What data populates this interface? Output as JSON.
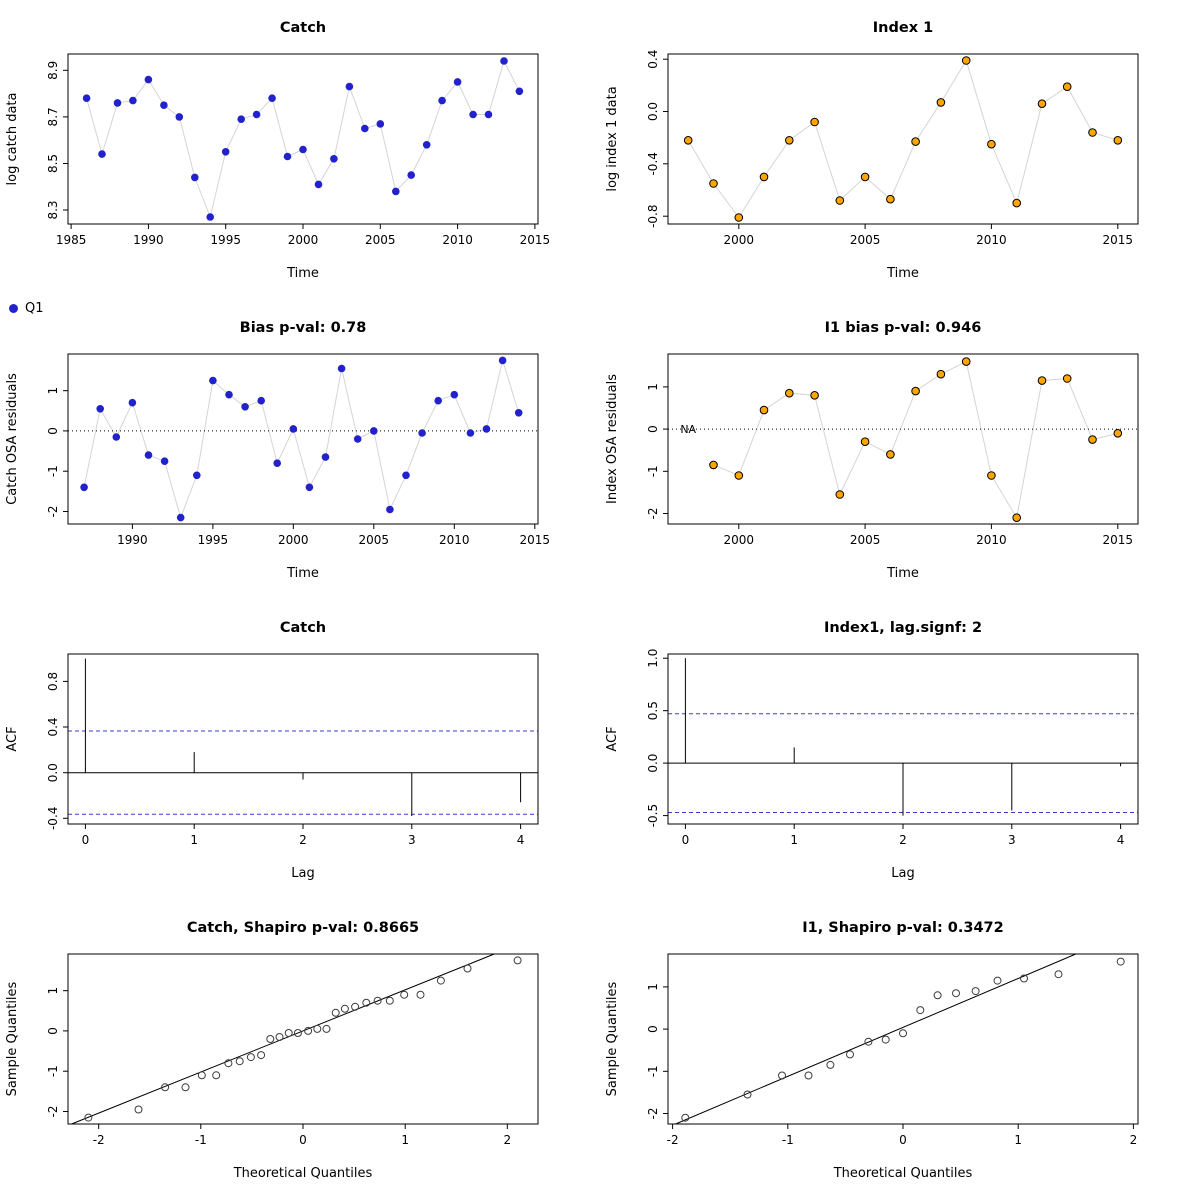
{
  "page": {
    "background": "#ffffff"
  },
  "legend": {
    "label": "Q1",
    "color": "#2222CC"
  },
  "colors": {
    "blue_point": "#2222CC",
    "orange_point": "#FFA500",
    "orange_stroke": "#000000",
    "green_title": "#228B22",
    "red_title": "#E00000",
    "connector": "#d4d4d4",
    "conf_band": "#3a3ad6"
  },
  "chart_data": [
    {
      "id": "catch-data",
      "type": "scatter",
      "title": "Catch",
      "title_color": "#000000",
      "xlabel": "Time",
      "ylabel": "log catch data",
      "xlim": [
        1984.8,
        2015.2
      ],
      "ylim": [
        8.24,
        8.97
      ],
      "xticks": {
        "values": [
          1985,
          1990,
          1995,
          2000,
          2005,
          2010,
          2015
        ],
        "labels": [
          "1985",
          "1990",
          "1995",
          "2000",
          "2005",
          "2010",
          "2015"
        ]
      },
      "yticks": {
        "values": [
          8.3,
          8.5,
          8.7,
          8.9
        ],
        "labels": [
          "8.3",
          "8.5",
          "8.7",
          "8.9"
        ]
      },
      "point": {
        "fill": "#2222CC",
        "stroke": "none",
        "open": false
      },
      "connect": true,
      "zero_line": false,
      "x": [
        1986,
        1987,
        1988,
        1989,
        1990,
        1991,
        1992,
        1993,
        1994,
        1995,
        1996,
        1997,
        1998,
        1999,
        2000,
        2001,
        2002,
        2003,
        2004,
        2005,
        2006,
        2007,
        2008,
        2009,
        2010,
        2011,
        2012,
        2013,
        2014
      ],
      "y": [
        8.78,
        8.54,
        8.76,
        8.77,
        8.86,
        8.75,
        8.7,
        8.44,
        8.27,
        8.55,
        8.69,
        8.71,
        8.78,
        8.53,
        8.56,
        8.41,
        8.52,
        8.83,
        8.65,
        8.67,
        8.38,
        8.45,
        8.58,
        8.77,
        8.85,
        8.71,
        8.71,
        8.94,
        8.81
      ]
    },
    {
      "id": "index1-data",
      "type": "scatter",
      "title": "Index 1",
      "title_color": "#000000",
      "xlabel": "Time",
      "ylabel": "log index 1 data",
      "xlim": [
        1997.2,
        2015.8
      ],
      "ylim": [
        -0.86,
        0.44
      ],
      "xticks": {
        "values": [
          2000,
          2005,
          2010,
          2015
        ],
        "labels": [
          "2000",
          "2005",
          "2010",
          "2015"
        ]
      },
      "yticks": {
        "values": [
          -0.8,
          -0.4,
          0.0,
          0.4
        ],
        "labels": [
          "-0.8",
          "-0.4",
          "0.0",
          "0.4"
        ]
      },
      "point": {
        "fill": "#FFA500",
        "stroke": "#000000",
        "open": false
      },
      "connect": true,
      "zero_line": false,
      "x": [
        1998,
        1999,
        2000,
        2001,
        2002,
        2003,
        2004,
        2005,
        2006,
        2007,
        2008,
        2009,
        2010,
        2011,
        2012,
        2013,
        2014,
        2015
      ],
      "y": [
        -0.22,
        -0.55,
        -0.81,
        -0.5,
        -0.22,
        -0.08,
        -0.68,
        -0.5,
        -0.67,
        -0.23,
        0.07,
        0.39,
        -0.25,
        -0.7,
        0.06,
        0.19,
        -0.16,
        -0.22
      ]
    },
    {
      "id": "catch-osa-residuals",
      "type": "scatter",
      "title": "Bias p-val: 0.78",
      "title_color": "#228B22",
      "xlabel": "Time",
      "ylabel": "Catch OSA residuals",
      "xlim": [
        1986.0,
        2015.2
      ],
      "ylim": [
        -2.31,
        1.91
      ],
      "xticks": {
        "values": [
          1990,
          1995,
          2000,
          2005,
          2010,
          2015
        ],
        "labels": [
          "1990",
          "1995",
          "2000",
          "2005",
          "2010",
          "2015"
        ]
      },
      "yticks": {
        "values": [
          -2,
          -1,
          0,
          1
        ],
        "labels": [
          "-2",
          "-1",
          "0",
          "1"
        ]
      },
      "point": {
        "fill": "#2222CC",
        "stroke": "none",
        "open": false
      },
      "connect": true,
      "zero_line": true,
      "x": [
        1987,
        1988,
        1989,
        1990,
        1991,
        1992,
        1993,
        1994,
        1995,
        1996,
        1997,
        1998,
        1999,
        2000,
        2001,
        2002,
        2003,
        2004,
        2005,
        2006,
        2007,
        2008,
        2009,
        2010,
        2011,
        2012,
        2013,
        2014
      ],
      "y": [
        -1.4,
        0.55,
        -0.15,
        0.7,
        -0.6,
        -0.75,
        -2.15,
        -1.1,
        1.25,
        0.9,
        0.6,
        0.75,
        -0.8,
        0.05,
        -1.4,
        -0.65,
        1.55,
        -0.2,
        0.0,
        -1.95,
        -1.1,
        -0.05,
        0.75,
        0.9,
        -0.05,
        0.05,
        1.75,
        0.45
      ]
    },
    {
      "id": "index-osa-residuals",
      "type": "scatter",
      "title": "I1 bias p-val: 0.946",
      "title_color": "#228B22",
      "xlabel": "Time",
      "ylabel": "Index OSA residuals",
      "xlim": [
        1997.2,
        2015.8
      ],
      "ylim": [
        -2.25,
        1.78
      ],
      "xticks": {
        "values": [
          2000,
          2005,
          2010,
          2015
        ],
        "labels": [
          "2000",
          "2005",
          "2010",
          "2015"
        ]
      },
      "yticks": {
        "values": [
          -2,
          -1,
          0,
          1
        ],
        "labels": [
          "-2",
          "-1",
          "0",
          "1"
        ]
      },
      "point": {
        "fill": "#FFA500",
        "stroke": "#000000",
        "open": false
      },
      "connect": true,
      "zero_line": true,
      "na_label": {
        "x": 1998.0,
        "y": 0,
        "text": "NA"
      },
      "x": [
        1999,
        2000,
        2001,
        2002,
        2003,
        2004,
        2005,
        2006,
        2007,
        2008,
        2009,
        2010,
        2011,
        2012,
        2013,
        2014,
        2015
      ],
      "y": [
        -0.85,
        -1.1,
        0.45,
        0.85,
        0.8,
        -1.55,
        -0.3,
        -0.6,
        0.9,
        1.3,
        1.6,
        -1.1,
        -2.1,
        1.15,
        1.2,
        -0.25,
        -0.1
      ]
    },
    {
      "id": "catch-acf",
      "type": "acf",
      "title": "Catch",
      "title_color": "#228B22",
      "xlabel": "Lag",
      "ylabel": "ACF",
      "xlim": [
        -0.16,
        4.16
      ],
      "ylim": [
        -0.45,
        1.04
      ],
      "xticks": {
        "values": [
          0,
          1,
          2,
          3,
          4
        ],
        "labels": [
          "0",
          "1",
          "2",
          "3",
          "4"
        ]
      },
      "yticks": {
        "values": [
          -0.4,
          0.0,
          0.4,
          0.8
        ],
        "labels": [
          "-0.4",
          "0.0",
          "0.4",
          "0.8"
        ]
      },
      "conf": 0.365,
      "lags": [
        0,
        1,
        2,
        3,
        4
      ],
      "values": [
        1.0,
        0.18,
        -0.06,
        -0.38,
        -0.26
      ]
    },
    {
      "id": "index-acf",
      "type": "acf",
      "title": "Index1, lag.signf: 2",
      "title_color": "#E00000",
      "xlabel": "Lag",
      "ylabel": "ACF",
      "xlim": [
        -0.16,
        4.16
      ],
      "ylim": [
        -0.58,
        1.04
      ],
      "xticks": {
        "values": [
          0,
          1,
          2,
          3,
          4
        ],
        "labels": [
          "0",
          "1",
          "2",
          "3",
          "4"
        ]
      },
      "yticks": {
        "values": [
          -0.5,
          0.0,
          0.5,
          1.0
        ],
        "labels": [
          "-0.5",
          "0.0",
          "0.5",
          "1.0"
        ]
      },
      "conf": 0.47,
      "lags": [
        0,
        1,
        2,
        3,
        4
      ],
      "values": [
        1.0,
        0.15,
        -0.5,
        -0.45,
        -0.03
      ]
    },
    {
      "id": "catch-qq",
      "type": "qq",
      "title": "Catch, Shapiro p-val: 0.8665",
      "title_color": "#228B22",
      "xlabel": "Theoretical Quantiles",
      "ylabel": "Sample Quantiles",
      "xlim": [
        -2.3,
        2.3
      ],
      "ylim": [
        -2.31,
        1.91
      ],
      "xticks": {
        "values": [
          -2,
          -1,
          0,
          1,
          2
        ],
        "labels": [
          "-2",
          "-1",
          "0",
          "1",
          "2"
        ]
      },
      "yticks": {
        "values": [
          -2,
          -1,
          0,
          1
        ],
        "labels": [
          "-2",
          "-1",
          "0",
          "1"
        ]
      },
      "line": {
        "slope": 1.02,
        "intercept": 0.0
      },
      "x": [
        -2.1,
        -1.61,
        -1.35,
        -1.15,
        -0.99,
        -0.85,
        -0.73,
        -0.62,
        -0.51,
        -0.41,
        -0.32,
        -0.23,
        -0.14,
        -0.05,
        0.05,
        0.14,
        0.23,
        0.32,
        0.41,
        0.51,
        0.62,
        0.73,
        0.85,
        0.99,
        1.15,
        1.35,
        1.61,
        2.1
      ],
      "y": [
        -2.15,
        -1.95,
        -1.4,
        -1.4,
        -1.1,
        -1.1,
        -0.8,
        -0.75,
        -0.65,
        -0.6,
        -0.2,
        -0.15,
        -0.05,
        -0.05,
        0.0,
        0.05,
        0.05,
        0.45,
        0.55,
        0.6,
        0.7,
        0.75,
        0.75,
        0.9,
        0.9,
        1.25,
        1.55,
        1.75
      ]
    },
    {
      "id": "index-qq",
      "type": "qq",
      "title": "I1, Shapiro p-val: 0.3472",
      "title_color": "#228B22",
      "xlabel": "Theoretical Quantiles",
      "ylabel": "Sample Quantiles",
      "xlim": [
        -2.04,
        2.04
      ],
      "ylim": [
        -2.25,
        1.78
      ],
      "xticks": {
        "values": [
          -2,
          -1,
          0,
          1,
          2
        ],
        "labels": [
          "-2",
          "-1",
          "0",
          "1",
          "2"
        ]
      },
      "yticks": {
        "values": [
          -2,
          -1,
          0,
          1
        ],
        "labels": [
          "-2",
          "-1",
          "0",
          "1"
        ]
      },
      "line": {
        "slope": 1.16,
        "intercept": 0.04
      },
      "x": [
        -1.89,
        -1.35,
        -1.05,
        -0.82,
        -0.63,
        -0.46,
        -0.3,
        -0.15,
        0.0,
        0.15,
        0.3,
        0.46,
        0.63,
        0.82,
        1.05,
        1.35,
        1.89
      ],
      "y": [
        -2.1,
        -1.55,
        -1.1,
        -1.1,
        -0.85,
        -0.6,
        -0.3,
        -0.25,
        -0.1,
        0.45,
        0.8,
        0.85,
        0.9,
        1.15,
        1.2,
        1.3,
        1.6
      ]
    }
  ]
}
